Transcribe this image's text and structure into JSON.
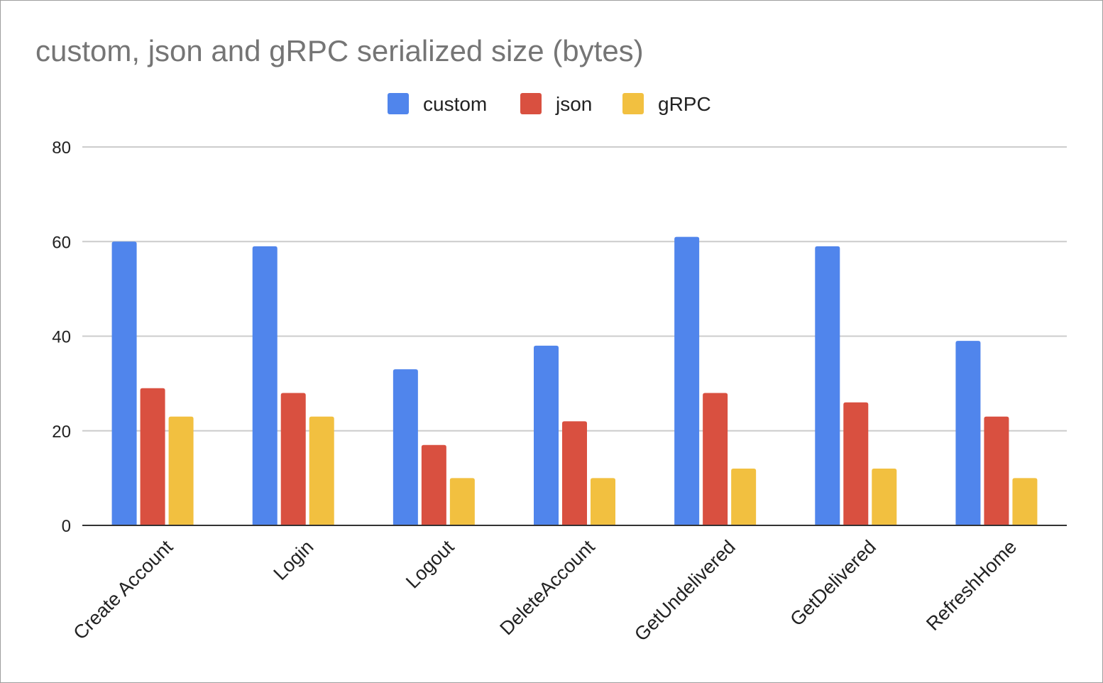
{
  "chart_data": {
    "type": "bar",
    "title": "custom, json and gRPC serialized size (bytes)",
    "xlabel": "",
    "ylabel": "",
    "ylim": [
      0,
      80
    ],
    "yticks": [
      "0",
      "20",
      "40",
      "60",
      "80"
    ],
    "grid": true,
    "legend_position": "top-center",
    "categories": [
      "Create Account",
      "Login",
      "Logout",
      "DeleteAccount",
      "GetUndelivered",
      "GetDelivered",
      "RefreshHome"
    ],
    "series": [
      {
        "name": "custom",
        "color": "#5085ec",
        "values": [
          60,
          59,
          33,
          38,
          61,
          59,
          39
        ]
      },
      {
        "name": "json",
        "color": "#d95040",
        "values": [
          29,
          28,
          17,
          22,
          28,
          26,
          23
        ]
      },
      {
        "name": "gRPC",
        "color": "#f2c040",
        "values": [
          23,
          23,
          10,
          10,
          12,
          12,
          10
        ]
      }
    ]
  }
}
